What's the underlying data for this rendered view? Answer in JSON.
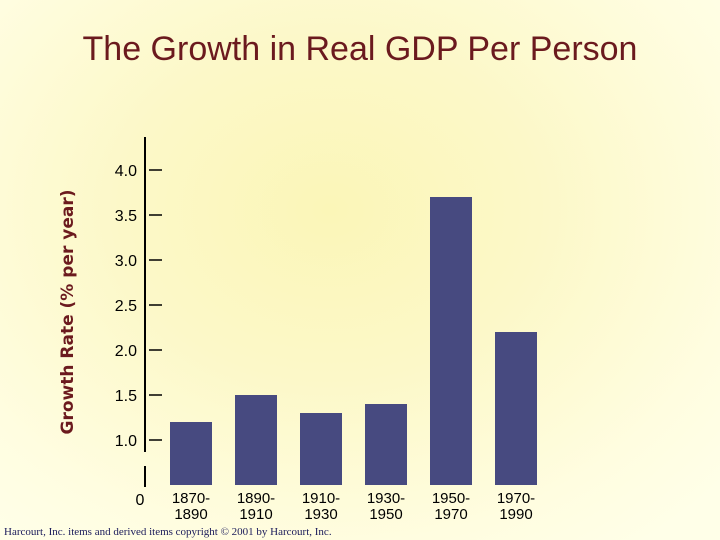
{
  "title": "The Growth in Real GDP Per Person",
  "footer": "Harcourt, Inc. items and derived items copyright © 2001 by Harcourt, Inc.",
  "colors": {
    "bar": "#474a80",
    "title": "#6b1a1e",
    "axis": "#000000"
  },
  "chart_data": {
    "type": "bar",
    "title": "The Growth in Real GDP Per Person",
    "ylabel": "Growth Rate (% per year)",
    "xlabel": "",
    "categories": [
      [
        "1870-",
        "1890"
      ],
      [
        "1890-",
        "1910"
      ],
      [
        "1910-",
        "1930"
      ],
      [
        "1930-",
        "1950"
      ],
      [
        "1950-",
        "1970"
      ],
      [
        "1970-",
        "1990"
      ]
    ],
    "values": [
      1.2,
      1.5,
      1.3,
      1.4,
      3.7,
      2.2
    ],
    "yticks": [
      "4.0",
      "3.5",
      "3.0",
      "2.5",
      "2.0",
      "1.5",
      "1.0"
    ],
    "origin_label": "0",
    "ylim": [
      0,
      4.0
    ],
    "axis_break": true,
    "grid": false,
    "legend": "none"
  }
}
